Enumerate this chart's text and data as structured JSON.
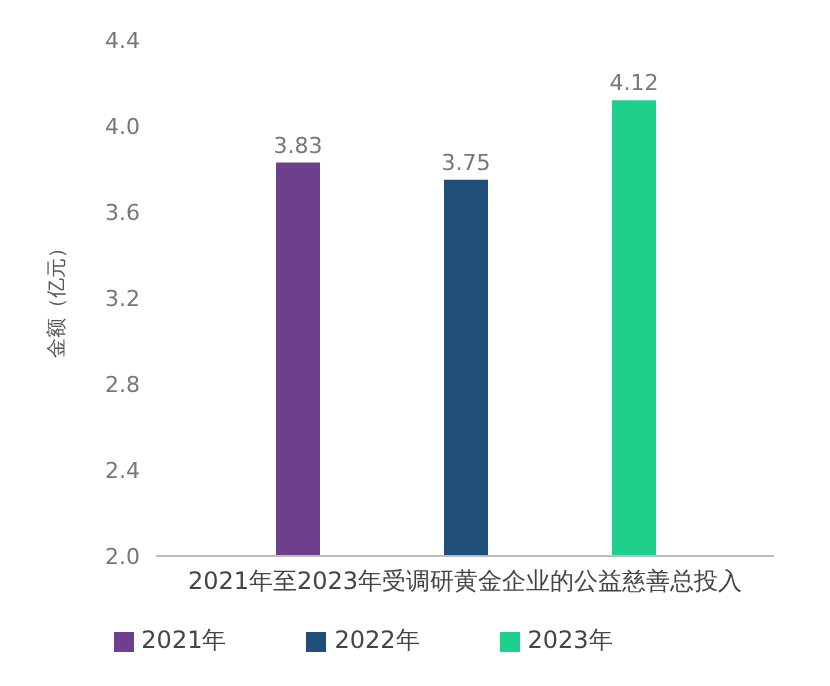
{
  "chart_data": {
    "type": "bar",
    "ylabel": "金额（亿元）",
    "categories": [
      "2021年至2023年受调研黄金企业的公益慈善总投入"
    ],
    "series": [
      {
        "name": "2021年",
        "color": "#6e3f8c",
        "values": [
          3.83
        ]
      },
      {
        "name": "2022年",
        "color": "#1f4e79",
        "values": [
          3.75
        ]
      },
      {
        "name": "2023年",
        "color": "#1fd08c",
        "values": [
          4.12
        ]
      }
    ],
    "ylim": [
      2.0,
      4.4
    ],
    "yticks": [
      {
        "value": 2,
        "label": "2.0"
      },
      {
        "value": 2.4,
        "label": "2.4"
      },
      {
        "value": 2.8,
        "label": "2.8"
      },
      {
        "value": 3.2,
        "label": "3.2"
      },
      {
        "value": 3.6,
        "label": "3.6"
      },
      {
        "value": 4,
        "label": "4.0"
      },
      {
        "value": 4.4,
        "label": "4.4"
      }
    ],
    "data_labels": true,
    "legend": "bottom",
    "grid": false
  }
}
